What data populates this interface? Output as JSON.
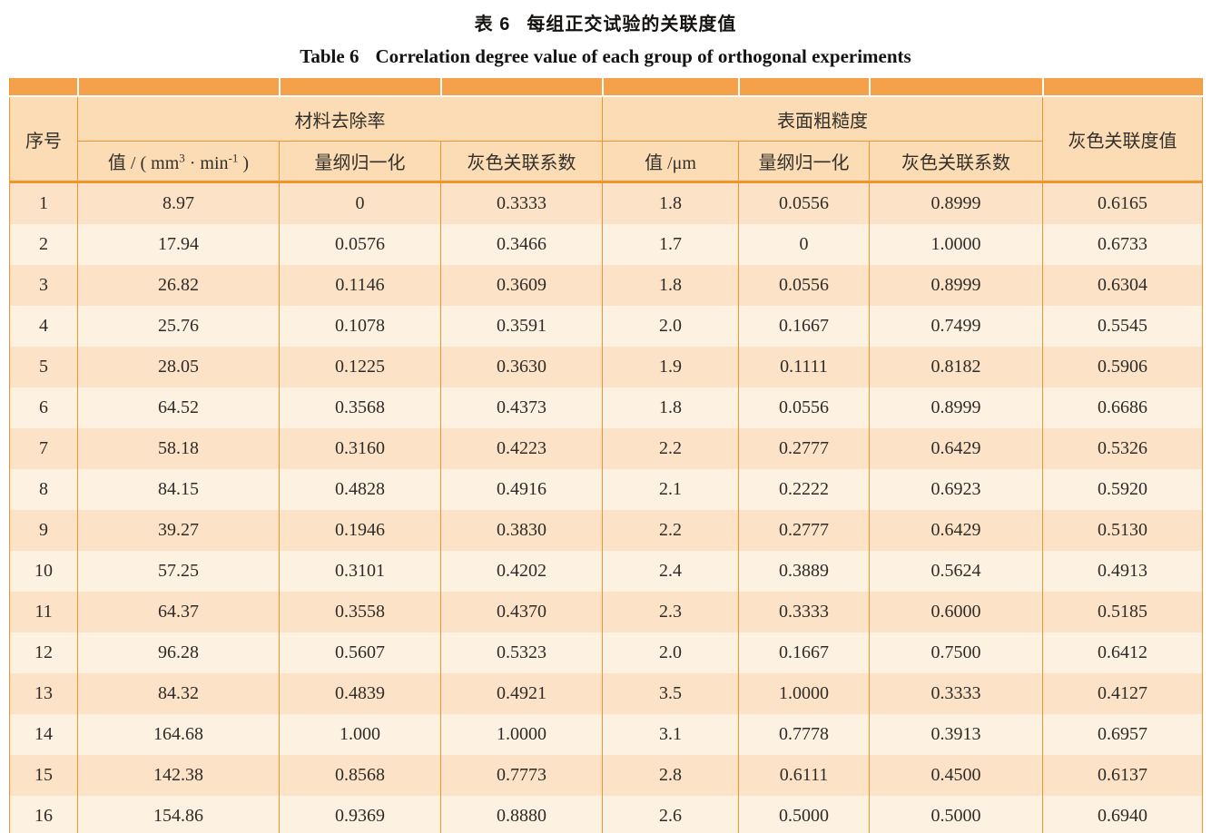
{
  "title": {
    "zh_label": "表 6",
    "zh_text": "每组正交试验的关联度值",
    "en_label": "Table 6",
    "en_text": "Correlation degree value of each group of orthogonal experiments"
  },
  "colors": {
    "band_orange": "#f5a14c",
    "grid_border_orange": "#f0952c",
    "header_bg": "#fbdcb4",
    "row_odd_bg": "#fce3c7",
    "row_even_bg": "#fdf1e1",
    "page_bg": "#ffffff",
    "text": "#2e2b28"
  },
  "table": {
    "header": {
      "serial": "序号",
      "mrr_group": "材料去除率",
      "mrr_sub_value_html": "值 / ( mm<sup>3</sup> · min<sup>-1</sup> )",
      "mrr_sub_norm": "量纲归一化",
      "mrr_sub_coeff": "灰色关联系数",
      "ra_group": "表面粗糙度",
      "ra_sub_value": "值 /μm",
      "ra_sub_norm": "量纲归一化",
      "ra_sub_coeff": "灰色关联系数",
      "grey_degree": "灰色关联度值"
    },
    "rows": [
      [
        "1",
        "8.97",
        "0",
        "0.3333",
        "1.8",
        "0.0556",
        "0.8999",
        "0.6165"
      ],
      [
        "2",
        "17.94",
        "0.0576",
        "0.3466",
        "1.7",
        "0",
        "1.0000",
        "0.6733"
      ],
      [
        "3",
        "26.82",
        "0.1146",
        "0.3609",
        "1.8",
        "0.0556",
        "0.8999",
        "0.6304"
      ],
      [
        "4",
        "25.76",
        "0.1078",
        "0.3591",
        "2.0",
        "0.1667",
        "0.7499",
        "0.5545"
      ],
      [
        "5",
        "28.05",
        "0.1225",
        "0.3630",
        "1.9",
        "0.1111",
        "0.8182",
        "0.5906"
      ],
      [
        "6",
        "64.52",
        "0.3568",
        "0.4373",
        "1.8",
        "0.0556",
        "0.8999",
        "0.6686"
      ],
      [
        "7",
        "58.18",
        "0.3160",
        "0.4223",
        "2.2",
        "0.2777",
        "0.6429",
        "0.5326"
      ],
      [
        "8",
        "84.15",
        "0.4828",
        "0.4916",
        "2.1",
        "0.2222",
        "0.6923",
        "0.5920"
      ],
      [
        "9",
        "39.27",
        "0.1946",
        "0.3830",
        "2.2",
        "0.2777",
        "0.6429",
        "0.5130"
      ],
      [
        "10",
        "57.25",
        "0.3101",
        "0.4202",
        "2.4",
        "0.3889",
        "0.5624",
        "0.4913"
      ],
      [
        "11",
        "64.37",
        "0.3558",
        "0.4370",
        "2.3",
        "0.3333",
        "0.6000",
        "0.5185"
      ],
      [
        "12",
        "96.28",
        "0.5607",
        "0.5323",
        "2.0",
        "0.1667",
        "0.7500",
        "0.6412"
      ],
      [
        "13",
        "84.32",
        "0.4839",
        "0.4921",
        "3.5",
        "1.0000",
        "0.3333",
        "0.4127"
      ],
      [
        "14",
        "164.68",
        "1.000",
        "1.0000",
        "3.1",
        "0.7778",
        "0.3913",
        "0.6957"
      ],
      [
        "15",
        "142.38",
        "0.8568",
        "0.7773",
        "2.8",
        "0.6111",
        "0.4500",
        "0.6137"
      ],
      [
        "16",
        "154.86",
        "0.9369",
        "0.8880",
        "2.6",
        "0.5000",
        "0.5000",
        "0.6940"
      ]
    ]
  }
}
